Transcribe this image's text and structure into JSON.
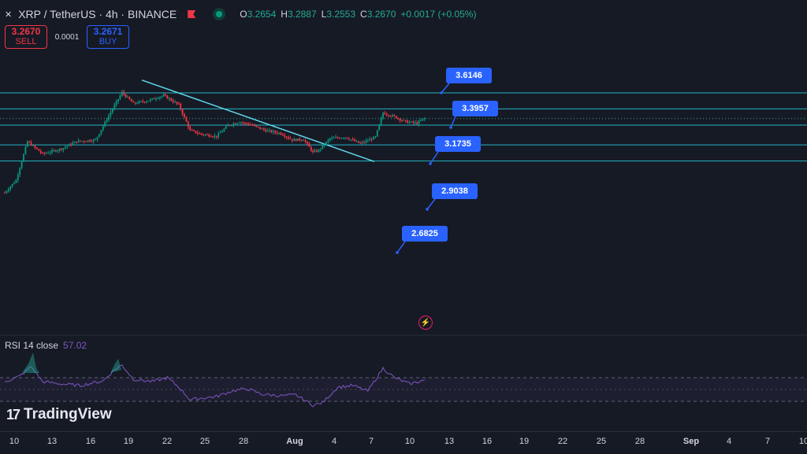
{
  "header": {
    "symbol": "XRP / TetherUS · 4h · BINANCE",
    "ohlc": [
      {
        "k": "O",
        "v": "3.2654"
      },
      {
        "k": "H",
        "v": "3.2887"
      },
      {
        "k": "L",
        "v": "3.2553"
      },
      {
        "k": "C",
        "v": "3.2670"
      },
      {
        "k": "",
        "v": "+0.0017 (+0.05%)"
      }
    ]
  },
  "trade": {
    "sell_price": "3.2670",
    "sell_label": "SELL",
    "spread": "0.0001",
    "buy_price": "3.2671",
    "buy_label": "BUY"
  },
  "rsi_panel": {
    "label": "RSI 14 close",
    "value": "57.02"
  },
  "logo_text": "TradingView",
  "colors": {
    "background": "#161a25",
    "up": "#089981",
    "down": "#f23645",
    "level_line": "#22b5c4",
    "label_bg": "#2962ff",
    "rsi_line": "#7e57c2"
  },
  "chart_data": {
    "type": "candlestick",
    "symbol": "XRP / TetherUS",
    "timeframe": "4h",
    "exchange": "BINANCE",
    "x_axis_ticks": [
      "10",
      "13",
      "16",
      "19",
      "22",
      "25",
      "28",
      "Aug",
      "4",
      "7",
      "10",
      "13",
      "16",
      "19",
      "22",
      "25",
      "28",
      "Sep",
      "4",
      "7",
      "10"
    ],
    "horizontal_levels": [
      3.6146,
      3.3957,
      3.1735,
      2.9038,
      2.6825
    ],
    "level_labels": [
      "3.6146",
      "3.3957",
      "3.1735",
      "2.9038",
      "2.6825"
    ],
    "trendline": {
      "from": {
        "x": "Jul 19",
        "y": 3.66
      },
      "to": {
        "x": "Aug 7",
        "y": 2.88
      }
    },
    "last_close": 3.267,
    "anchors": [
      {
        "t": 0,
        "p": 2.25
      },
      {
        "t": 6,
        "p": 2.42
      },
      {
        "t": 12,
        "p": 2.95
      },
      {
        "t": 20,
        "p": 2.78
      },
      {
        "t": 30,
        "p": 2.85
      },
      {
        "t": 38,
        "p": 2.95
      },
      {
        "t": 48,
        "p": 2.97
      },
      {
        "t": 56,
        "p": 3.35
      },
      {
        "t": 62,
        "p": 3.62
      },
      {
        "t": 68,
        "p": 3.47
      },
      {
        "t": 76,
        "p": 3.51
      },
      {
        "t": 84,
        "p": 3.58
      },
      {
        "t": 92,
        "p": 3.45
      },
      {
        "t": 98,
        "p": 3.1
      },
      {
        "t": 104,
        "p": 3.05
      },
      {
        "t": 112,
        "p": 3.02
      },
      {
        "t": 118,
        "p": 3.17
      },
      {
        "t": 124,
        "p": 3.22
      },
      {
        "t": 130,
        "p": 3.18
      },
      {
        "t": 138,
        "p": 3.1
      },
      {
        "t": 146,
        "p": 3.06
      },
      {
        "t": 152,
        "p": 2.97
      },
      {
        "t": 158,
        "p": 2.98
      },
      {
        "t": 163,
        "p": 2.8
      },
      {
        "t": 166,
        "p": 2.83
      },
      {
        "t": 172,
        "p": 2.99
      },
      {
        "t": 180,
        "p": 3.01
      },
      {
        "t": 188,
        "p": 2.92
      },
      {
        "t": 196,
        "p": 3.01
      },
      {
        "t": 200,
        "p": 3.34
      },
      {
        "t": 206,
        "p": 3.29
      },
      {
        "t": 212,
        "p": 3.22
      },
      {
        "t": 218,
        "p": 3.2
      },
      {
        "t": 222,
        "p": 3.267
      }
    ],
    "rsi": {
      "period": 14,
      "last": 57.02,
      "overbought": 70,
      "oversold": 30,
      "anchors": [
        {
          "t": 0,
          "v": 55
        },
        {
          "t": 8,
          "v": 62
        },
        {
          "t": 14,
          "v": 74
        },
        {
          "t": 20,
          "v": 55
        },
        {
          "t": 30,
          "v": 52
        },
        {
          "t": 40,
          "v": 50
        },
        {
          "t": 52,
          "v": 56
        },
        {
          "t": 58,
          "v": 70
        },
        {
          "t": 62,
          "v": 76
        },
        {
          "t": 68,
          "v": 58
        },
        {
          "t": 78,
          "v": 55
        },
        {
          "t": 86,
          "v": 60
        },
        {
          "t": 92,
          "v": 48
        },
        {
          "t": 98,
          "v": 32
        },
        {
          "t": 104,
          "v": 34
        },
        {
          "t": 112,
          "v": 36
        },
        {
          "t": 120,
          "v": 43
        },
        {
          "t": 128,
          "v": 46
        },
        {
          "t": 136,
          "v": 39
        },
        {
          "t": 146,
          "v": 37
        },
        {
          "t": 154,
          "v": 38
        },
        {
          "t": 163,
          "v": 25
        },
        {
          "t": 168,
          "v": 28
        },
        {
          "t": 176,
          "v": 48
        },
        {
          "t": 184,
          "v": 50
        },
        {
          "t": 192,
          "v": 43
        },
        {
          "t": 200,
          "v": 72
        },
        {
          "t": 206,
          "v": 60
        },
        {
          "t": 214,
          "v": 52
        },
        {
          "t": 222,
          "v": 57
        }
      ]
    }
  }
}
